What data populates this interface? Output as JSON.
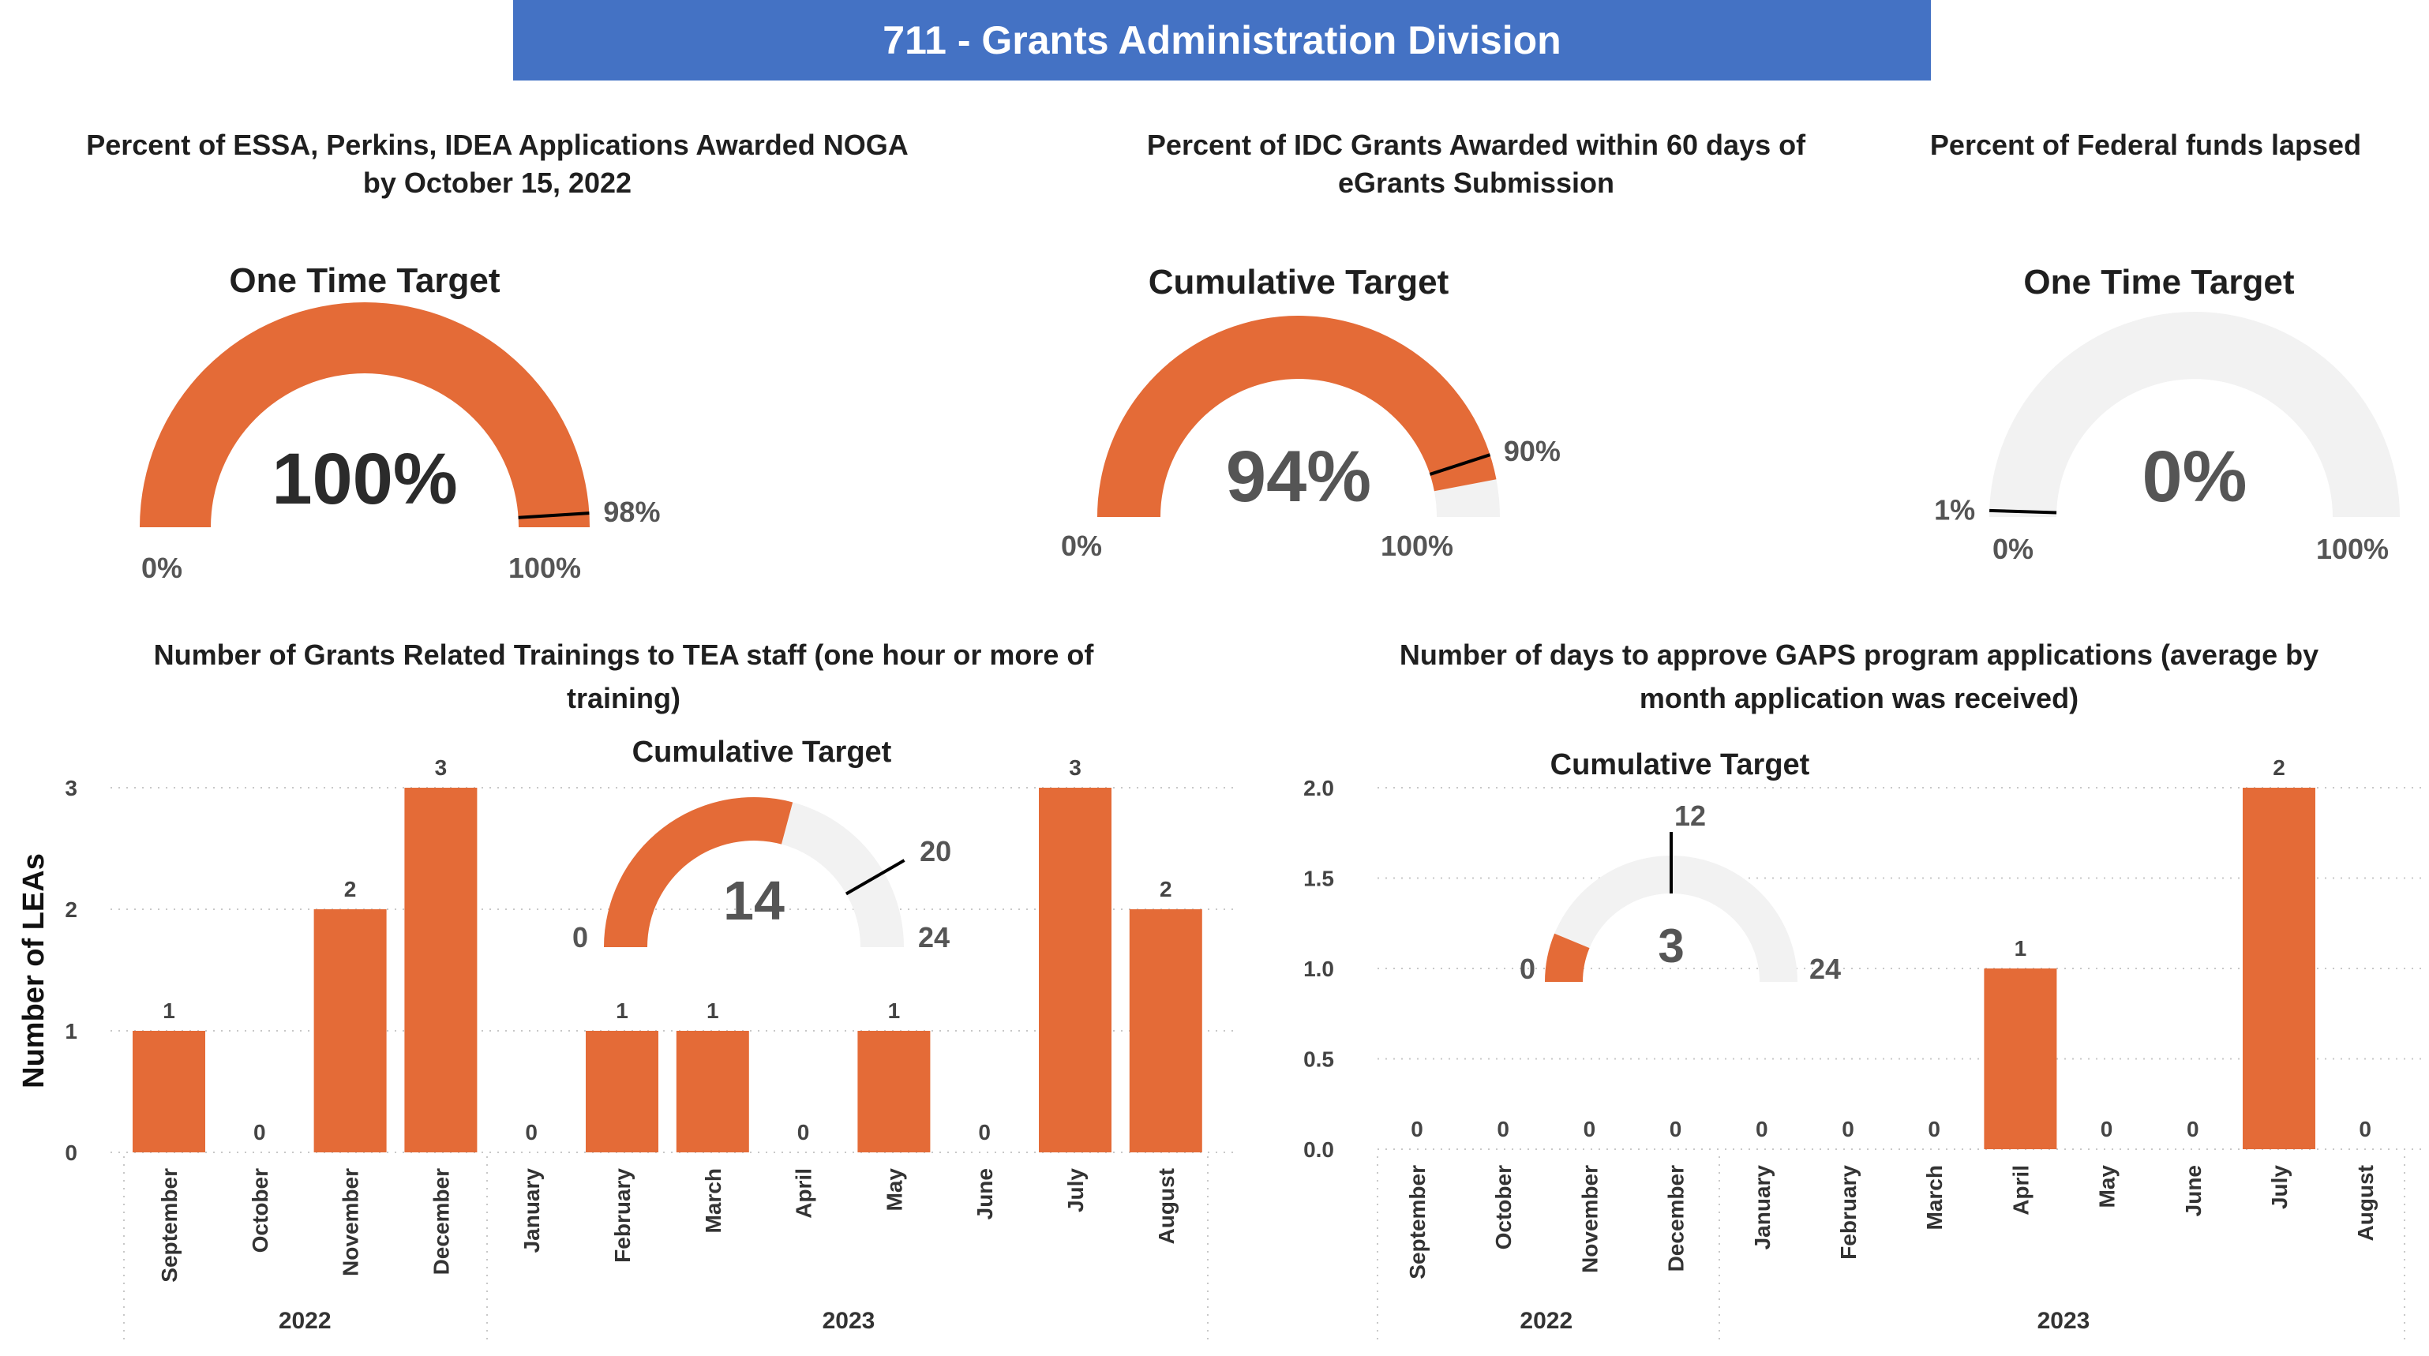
{
  "header": {
    "title": "711 - Grants Administration Division",
    "color": "#4472C4"
  },
  "colors": {
    "accent": "#E46B37",
    "track": "#F2F2F2",
    "target_line": "#000000"
  },
  "gauges": [
    {
      "id": "g1",
      "heading": [
        "Percent of ESSA, Perkins, IDEA Applications Awarded NOGA",
        "by October 15, 2022"
      ],
      "subtitle": "One Time Target",
      "value": 100,
      "value_label": "100%",
      "min_label": "0%",
      "max_label": "100%",
      "target": 98,
      "target_label": "98%",
      "min": 0,
      "max": 100
    },
    {
      "id": "g2",
      "heading": [
        "Percent of IDC Grants Awarded within 60 days of",
        "eGrants Submission"
      ],
      "subtitle": "Cumulative Target",
      "value": 94,
      "value_label": "94%",
      "min_label": "0%",
      "max_label": "100%",
      "target": 90,
      "target_label": "90%",
      "min": 0,
      "max": 100
    },
    {
      "id": "g3",
      "heading": [
        "Percent of Federal funds lapsed"
      ],
      "subtitle": "One Time Target",
      "value": 0,
      "value_label": "0%",
      "min_label": "0%",
      "max_label": "100%",
      "target": 1,
      "target_label": "1%",
      "min": 0,
      "max": 100
    }
  ],
  "chart_data": [
    {
      "type": "bar",
      "title": [
        "Number of Grants Related Trainings to TEA staff (one hour or more of",
        "training)"
      ],
      "ylabel": "Number of LEAs",
      "ylim": [
        0,
        3
      ],
      "yticks": [
        "0",
        "1",
        "2",
        "3"
      ],
      "categories": [
        "September",
        "October",
        "November",
        "December",
        "January",
        "February",
        "March",
        "April",
        "May",
        "June",
        "July",
        "August"
      ],
      "groups": [
        {
          "label": "2022",
          "count": 4
        },
        {
          "label": "2023",
          "count": 8
        }
      ],
      "values": [
        1,
        0,
        2,
        3,
        0,
        1,
        1,
        0,
        1,
        0,
        3,
        2
      ],
      "value_labels": [
        "1",
        "0",
        "2",
        "3",
        "0",
        "1",
        "1",
        "0",
        "1",
        "0",
        "3",
        "2"
      ],
      "grid": true,
      "inset_gauge": {
        "subtitle": "Cumulative Target",
        "value": 14,
        "value_label": "14",
        "min": 0,
        "max": 24,
        "min_label": "0",
        "max_label": "24",
        "target": 20,
        "target_label": "20"
      }
    },
    {
      "type": "bar",
      "title": [
        "Number of days to approve GAPS program applications (average by",
        "month application was received)"
      ],
      "ylabel": "",
      "ylim": [
        0,
        2
      ],
      "yticks": [
        "0.0",
        "0.5",
        "1.0",
        "1.5",
        "2.0"
      ],
      "categories": [
        "September",
        "October",
        "November",
        "December",
        "January",
        "February",
        "March",
        "April",
        "May",
        "June",
        "July",
        "August"
      ],
      "groups": [
        {
          "label": "2022",
          "count": 4
        },
        {
          "label": "2023",
          "count": 8
        }
      ],
      "values": [
        0,
        0,
        0,
        0,
        0,
        0,
        0,
        1,
        0,
        0,
        2,
        0
      ],
      "value_labels": [
        "0",
        "0",
        "0",
        "0",
        "0",
        "0",
        "0",
        "1",
        "0",
        "0",
        "2",
        "0"
      ],
      "grid": true,
      "inset_gauge": {
        "subtitle": "Cumulative Target",
        "value": 3,
        "value_label": "3",
        "min": 0,
        "max": 24,
        "min_label": "0",
        "max_label": "24",
        "target": 12,
        "target_label": "12"
      }
    }
  ]
}
